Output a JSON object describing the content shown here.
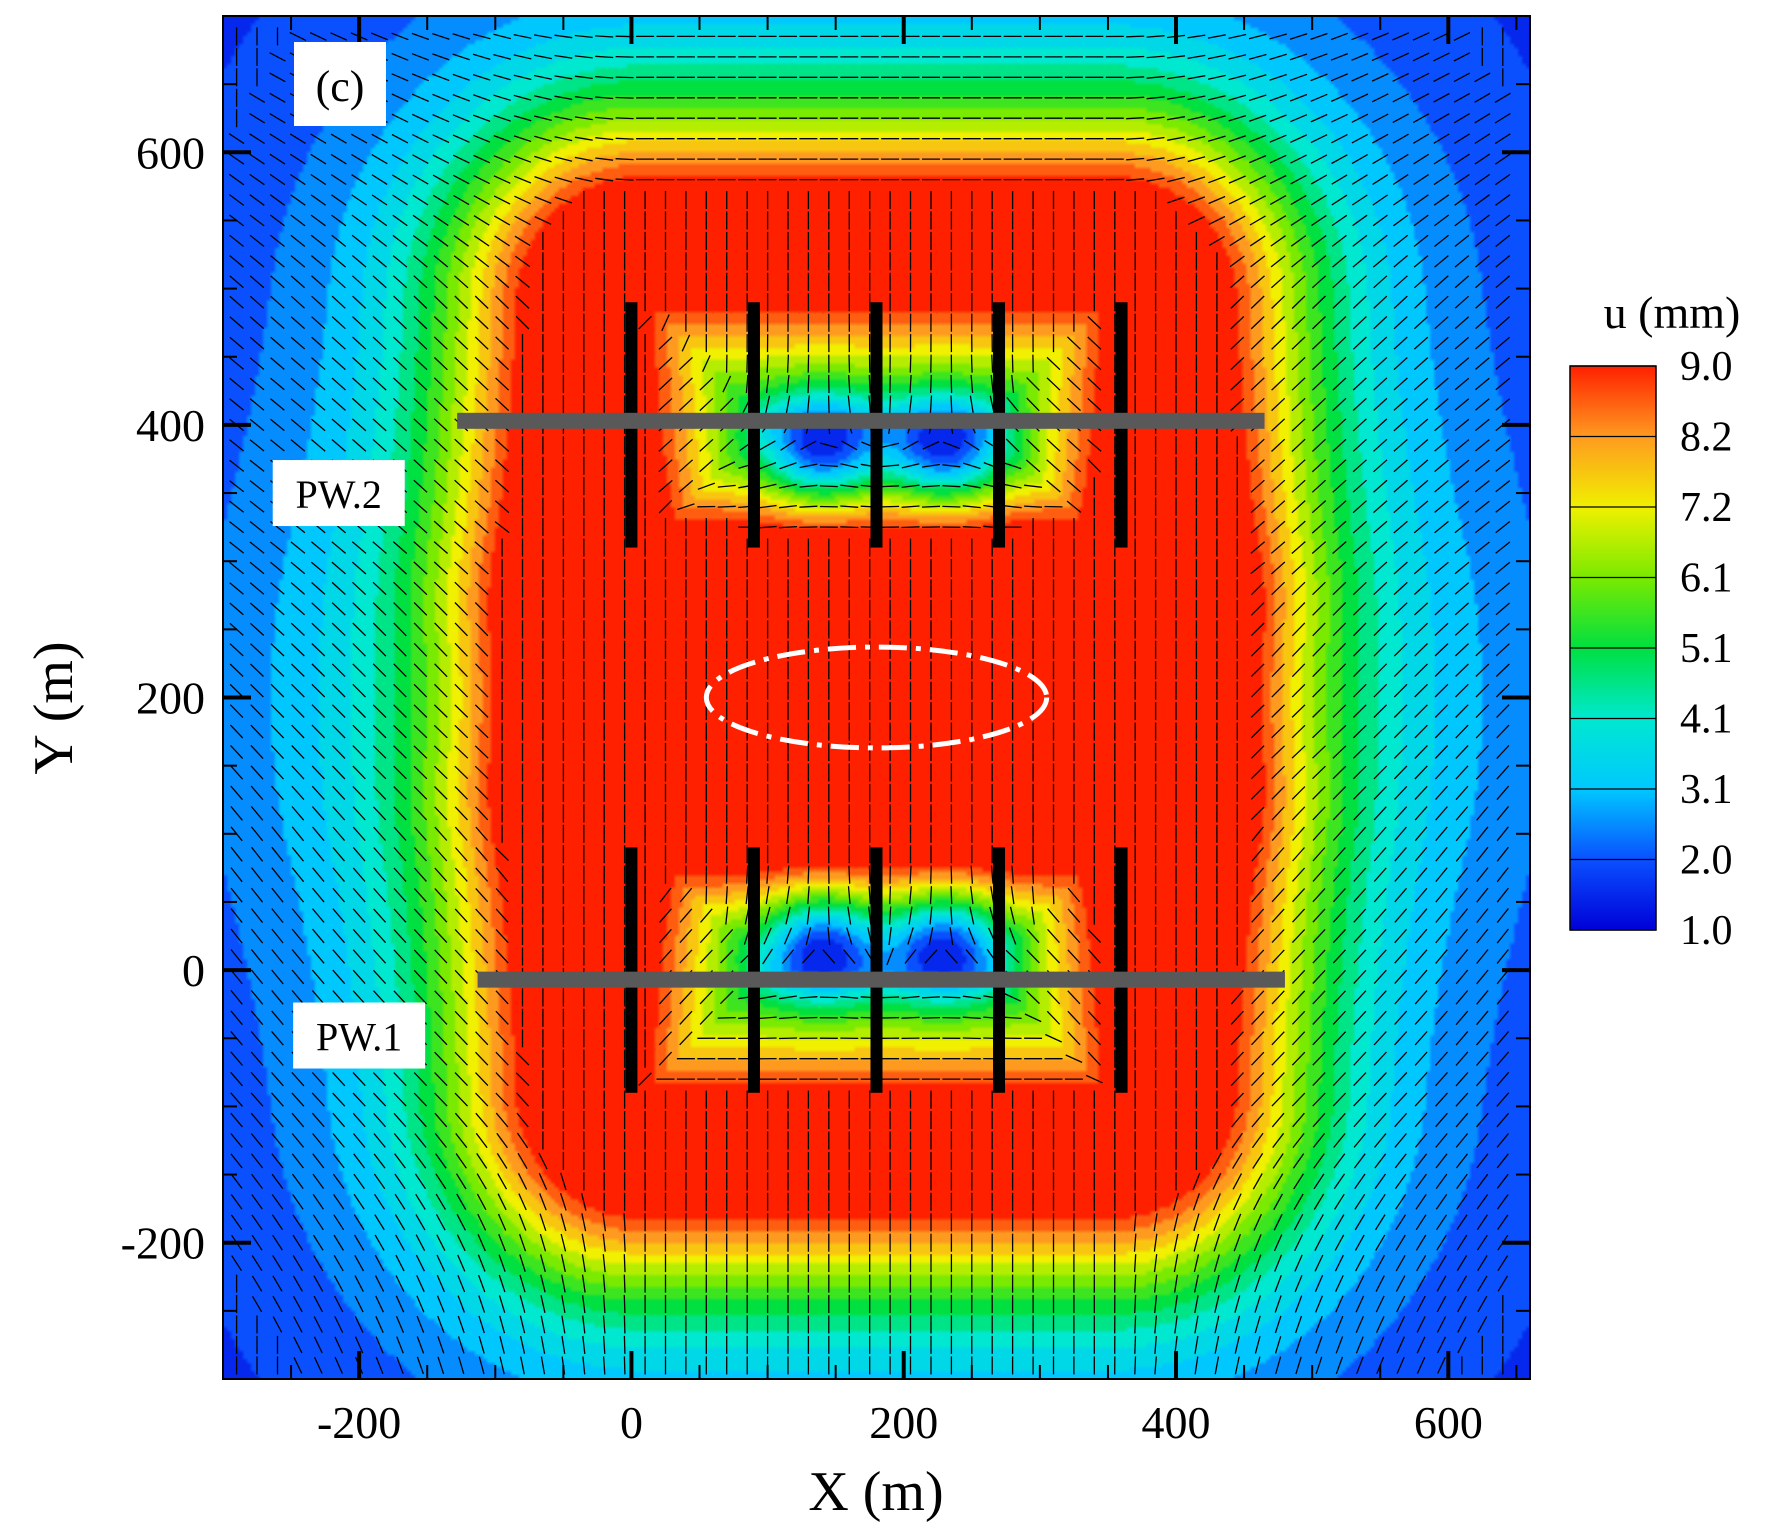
{
  "chart_data": {
    "type": "heatmap",
    "panel_label": "(c)",
    "xlabel": "X (m)",
    "ylabel": "Y (m)",
    "xlim": [
      -300,
      660
    ],
    "ylim": [
      -300,
      700
    ],
    "x_ticks": [
      -200,
      0,
      200,
      400,
      600
    ],
    "y_ticks": [
      -200,
      0,
      200,
      400,
      600
    ],
    "colorbar": {
      "title": "u (mm)",
      "ticks": [
        "9.0",
        "8.2",
        "7.2",
        "6.1",
        "5.1",
        "4.1",
        "3.1",
        "2.0",
        "1.0"
      ],
      "min": 1.0,
      "max": 9.0,
      "colors": [
        "#0000d8",
        "#0a50ff",
        "#00c8ff",
        "#00e8d0",
        "#00e040",
        "#7aea00",
        "#f0f000",
        "#ff9a20",
        "#ff2000"
      ]
    },
    "field_quantity": "u (mm)",
    "annotations": [
      {
        "text": "PW.2",
        "x": -215,
        "y": 350
      },
      {
        "text": "PW.1",
        "x": -200,
        "y": -48
      }
    ],
    "tunnels": [
      {
        "name": "PW.2",
        "y": 403,
        "x_start": -128,
        "x_end": 465
      },
      {
        "name": "PW.1",
        "y": -7,
        "x_start": -113,
        "x_end": 480
      }
    ],
    "piles_x": [
      0,
      90,
      180,
      270,
      360
    ],
    "piles_pw2": {
      "y_start": 310,
      "y_end": 490
    },
    "piles_pw1": {
      "y_start": -90,
      "y_end": 90
    },
    "highlight_ellipse": {
      "cx": 180,
      "cy": 200,
      "rx": 125,
      "ry": 37
    }
  }
}
